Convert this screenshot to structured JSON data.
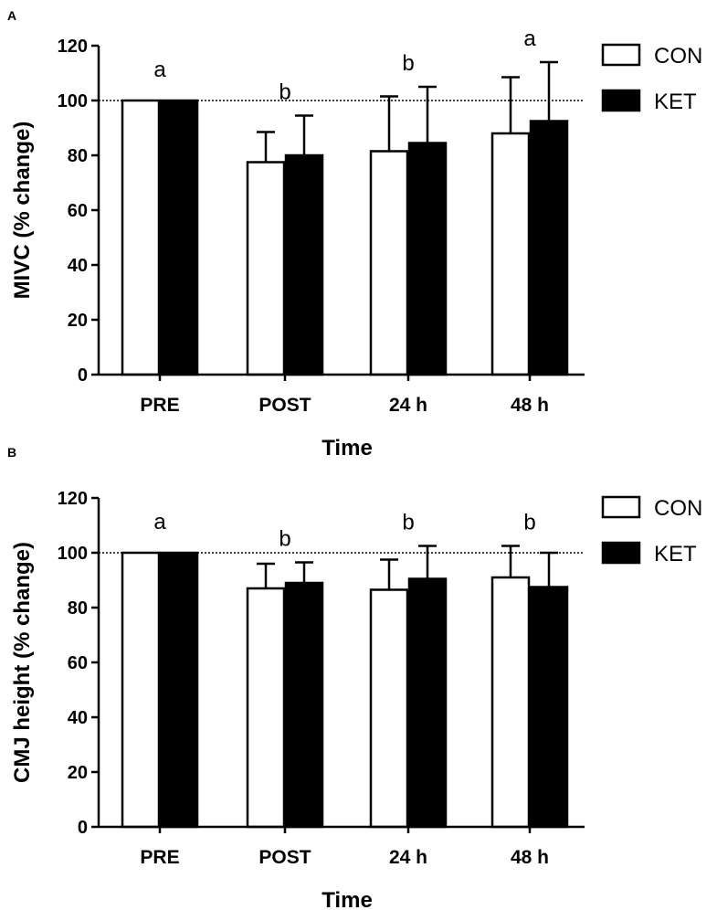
{
  "chart_data": [
    {
      "panel": "A",
      "type": "bar",
      "categories": [
        "PRE",
        "POST",
        "24 h",
        "48 h"
      ],
      "series": [
        {
          "name": "CON",
          "values": [
            100,
            77.5,
            81.5,
            88
          ],
          "errors": [
            0,
            11,
            20,
            20.5
          ],
          "fill": "#ffffff"
        },
        {
          "name": "KET",
          "values": [
            100,
            80,
            84.5,
            92.5
          ],
          "errors": [
            0,
            14.5,
            20.5,
            21.5
          ],
          "fill": "#000000"
        }
      ],
      "annotations": [
        "a",
        "b",
        "b",
        "a"
      ],
      "xlabel": "Time",
      "ylabel": "MIVC (% change)",
      "ylim": [
        0,
        120
      ],
      "yticks": [
        0,
        20,
        40,
        60,
        80,
        100,
        120
      ],
      "reference_line": 100
    },
    {
      "panel": "B",
      "type": "bar",
      "categories": [
        "PRE",
        "POST",
        "24 h",
        "48 h"
      ],
      "series": [
        {
          "name": "CON",
          "values": [
            100,
            87,
            86.5,
            91
          ],
          "errors": [
            0,
            9,
            11,
            11.5
          ],
          "fill": "#ffffff"
        },
        {
          "name": "KET",
          "values": [
            100,
            89,
            90.5,
            87.5
          ],
          "errors": [
            0,
            7.5,
            12,
            12.5
          ],
          "fill": "#000000"
        }
      ],
      "annotations": [
        "a",
        "b",
        "b",
        "b"
      ],
      "xlabel": "Time",
      "ylabel": "CMJ height  (% change)",
      "ylim": [
        0,
        120
      ],
      "yticks": [
        0,
        20,
        40,
        60,
        80,
        100,
        120
      ],
      "reference_line": 100
    }
  ]
}
